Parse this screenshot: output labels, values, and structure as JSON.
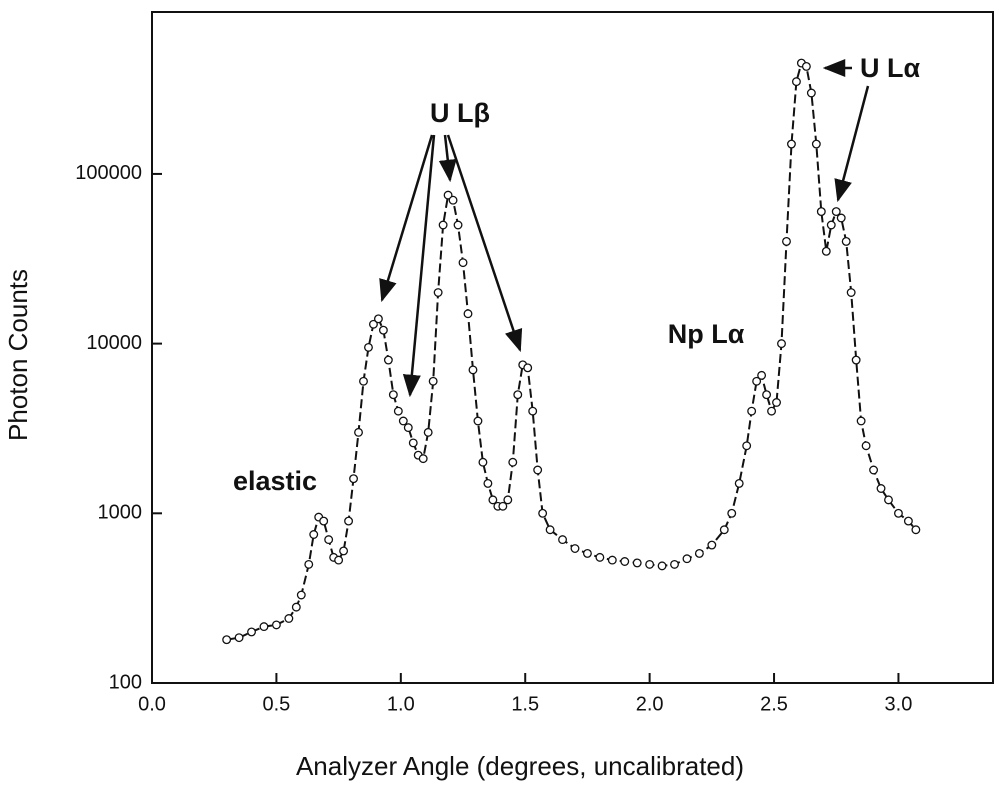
{
  "chart_data": {
    "type": "scatter",
    "x_label": "Analyzer Angle (degrees, uncalibrated)",
    "y_label": "Photon Counts",
    "log_y": true,
    "color": "#111111",
    "x": [
      0.3,
      0.35,
      0.4,
      0.45,
      0.5,
      0.55,
      0.58,
      0.6,
      0.63,
      0.65,
      0.67,
      0.69,
      0.71,
      0.73,
      0.75,
      0.77,
      0.79,
      0.81,
      0.83,
      0.85,
      0.87,
      0.89,
      0.91,
      0.93,
      0.95,
      0.97,
      0.99,
      1.01,
      1.03,
      1.05,
      1.07,
      1.09,
      1.11,
      1.13,
      1.15,
      1.17,
      1.19,
      1.21,
      1.23,
      1.25,
      1.27,
      1.29,
      1.31,
      1.33,
      1.35,
      1.37,
      1.39,
      1.41,
      1.43,
      1.45,
      1.47,
      1.49,
      1.51,
      1.53,
      1.55,
      1.57,
      1.6,
      1.65,
      1.7,
      1.75,
      1.8,
      1.85,
      1.9,
      1.95,
      2.0,
      2.05,
      2.1,
      2.15,
      2.2,
      2.25,
      2.3,
      2.33,
      2.36,
      2.39,
      2.41,
      2.43,
      2.45,
      2.47,
      2.49,
      2.51,
      2.53,
      2.55,
      2.57,
      2.59,
      2.61,
      2.63,
      2.65,
      2.67,
      2.69,
      2.71,
      2.73,
      2.75,
      2.77,
      2.79,
      2.81,
      2.83,
      2.85,
      2.87,
      2.9,
      2.93,
      2.96,
      3.0,
      3.04,
      3.07
    ],
    "values": [
      180,
      185,
      200,
      215,
      220,
      240,
      280,
      330,
      500,
      750,
      950,
      900,
      700,
      550,
      530,
      600,
      900,
      1600,
      3000,
      6000,
      9500,
      13000,
      14000,
      12000,
      8000,
      5000,
      4000,
      3500,
      3200,
      2600,
      2200,
      2100,
      3000,
      6000,
      20000,
      50000,
      75000,
      70000,
      50000,
      30000,
      15000,
      7000,
      3500,
      2000,
      1500,
      1200,
      1100,
      1100,
      1200,
      2000,
      5000,
      7500,
      7200,
      4000,
      1800,
      1000,
      800,
      700,
      620,
      580,
      550,
      530,
      520,
      510,
      500,
      490,
      500,
      540,
      580,
      650,
      800,
      1000,
      1500,
      2500,
      4000,
      6000,
      6500,
      5000,
      4000,
      4500,
      10000,
      40000,
      150000,
      350000,
      450000,
      430000,
      300000,
      150000,
      60000,
      35000,
      50000,
      60000,
      55000,
      40000,
      20000,
      8000,
      3500,
      2500,
      1800,
      1400,
      1200,
      1000,
      900,
      800
    ],
    "xlim": [
      0,
      3.38
    ],
    "ylim": [
      100,
      900000
    ],
    "xticks": [
      {
        "value": 0,
        "label": "0.0"
      },
      0.5,
      {
        "value": 1,
        "label": "1.0"
      },
      1.5,
      {
        "value": 2,
        "label": "2.0"
      },
      2.5,
      {
        "value": 3,
        "label": "3.0"
      }
    ],
    "yticks": [
      100,
      1000,
      10000,
      100000
    ],
    "annotations": [
      "elastic",
      "U Lβ",
      "Np Lα",
      "U Lα"
    ]
  }
}
